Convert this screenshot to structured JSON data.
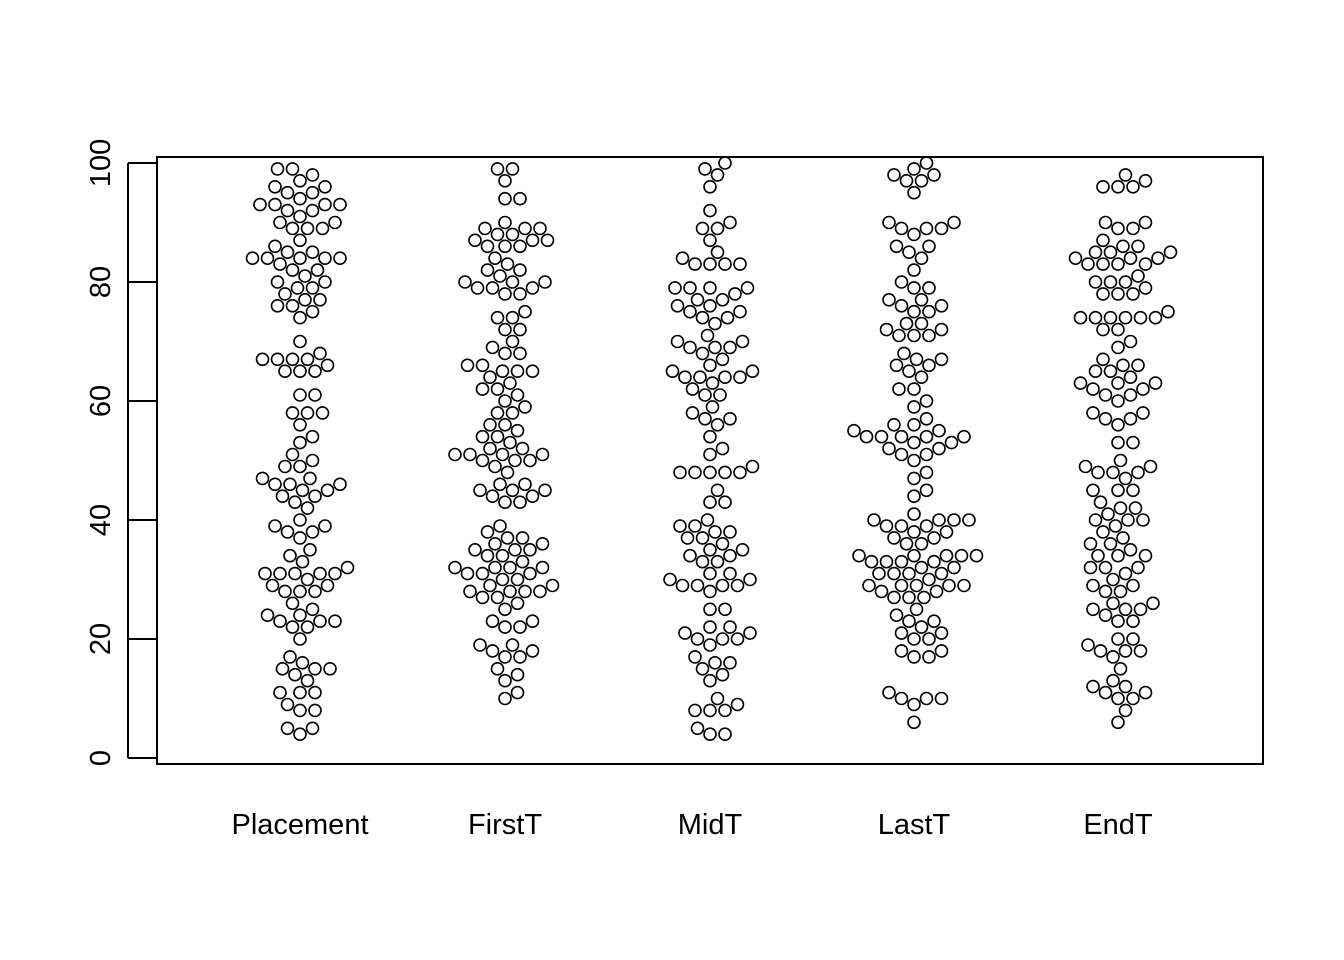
{
  "chart_data": {
    "type": "scatter",
    "subtype": "beeswarm",
    "title": "",
    "xlabel": "",
    "ylabel": "",
    "ylim": [
      -1,
      101
    ],
    "yticks": [
      "0",
      "20",
      "40",
      "60",
      "80",
      "100"
    ],
    "grid": false,
    "legend": "none",
    "marker": "open-circle",
    "colors": {
      "marker_stroke": "#000000",
      "axis": "#000000",
      "background": "#ffffff"
    },
    "categories": [
      "Placement",
      "FirstT",
      "MidT",
      "LastT",
      "EndT"
    ],
    "series": [
      {
        "values": [
          99,
          99,
          98,
          97,
          96,
          96,
          95,
          95,
          94,
          93,
          93,
          93,
          93,
          92,
          92,
          91,
          90,
          90,
          89,
          89,
          89,
          87,
          86,
          85,
          85,
          84,
          84,
          84,
          84,
          84,
          83,
          82,
          82,
          81,
          80,
          80,
          79,
          79,
          78,
          77,
          77,
          76,
          76,
          75,
          74,
          70,
          68,
          67,
          67,
          67,
          67,
          66,
          65,
          65,
          65,
          61,
          61,
          58,
          58,
          58,
          56,
          54,
          53,
          51,
          50,
          49,
          49,
          47,
          47,
          46,
          46,
          46,
          45,
          45,
          44,
          44,
          43,
          42,
          40,
          39,
          39,
          38,
          38,
          37,
          35,
          34,
          33,
          32,
          31,
          31,
          31,
          31,
          31,
          30,
          29,
          29,
          28,
          28,
          28,
          26,
          25,
          24,
          24,
          23,
          23,
          23,
          22,
          22,
          20,
          17,
          16,
          15,
          15,
          15,
          14,
          13,
          11,
          11,
          11,
          9,
          8,
          8,
          5,
          5,
          4
        ]
      },
      {
        "values": [
          99,
          99,
          97,
          94,
          94,
          90,
          89,
          89,
          89,
          88,
          88,
          87,
          87,
          87,
          86,
          86,
          86,
          84,
          83,
          82,
          82,
          81,
          80,
          80,
          80,
          79,
          79,
          79,
          78,
          78,
          75,
          74,
          74,
          72,
          72,
          70,
          69,
          68,
          68,
          66,
          66,
          65,
          65,
          65,
          64,
          63,
          62,
          62,
          61,
          60,
          59,
          58,
          58,
          56,
          56,
          55,
          54,
          54,
          53,
          52,
          52,
          51,
          51,
          51,
          51,
          50,
          50,
          50,
          49,
          48,
          46,
          46,
          45,
          45,
          45,
          44,
          44,
          43,
          43,
          39,
          38,
          37,
          37,
          36,
          36,
          35,
          35,
          35,
          34,
          34,
          33,
          32,
          32,
          32,
          32,
          31,
          31,
          31,
          30,
          30,
          29,
          29,
          28,
          28,
          28,
          28,
          27,
          27,
          26,
          25,
          23,
          23,
          22,
          22,
          19,
          19,
          18,
          18,
          17,
          17,
          15,
          14,
          13,
          11,
          10
        ]
      },
      {
        "values": [
          100,
          99,
          98,
          96,
          92,
          90,
          89,
          89,
          87,
          85,
          84,
          83,
          83,
          83,
          83,
          79,
          79,
          79,
          79,
          78,
          77,
          77,
          76,
          76,
          75,
          75,
          74,
          74,
          73,
          71,
          70,
          70,
          69,
          69,
          69,
          68,
          67,
          66,
          65,
          65,
          64,
          64,
          64,
          64,
          63,
          62,
          61,
          61,
          59,
          58,
          57,
          57,
          56,
          54,
          52,
          51,
          49,
          48,
          48,
          48,
          48,
          48,
          45,
          43,
          43,
          40,
          39,
          39,
          38,
          38,
          37,
          37,
          36,
          35,
          35,
          34,
          34,
          33,
          33,
          31,
          31,
          30,
          30,
          29,
          29,
          29,
          29,
          28,
          25,
          25,
          22,
          22,
          21,
          21,
          20,
          20,
          20,
          19,
          17,
          16,
          16,
          15,
          14,
          13,
          10,
          9,
          8,
          8,
          8,
          5,
          4,
          4
        ]
      },
      {
        "values": [
          100,
          99,
          98,
          98,
          97,
          97,
          95,
          90,
          90,
          89,
          89,
          89,
          88,
          86,
          86,
          85,
          84,
          82,
          80,
          79,
          79,
          77,
          77,
          76,
          76,
          75,
          75,
          73,
          73,
          72,
          72,
          71,
          71,
          71,
          68,
          67,
          67,
          66,
          66,
          65,
          64,
          62,
          62,
          60,
          59,
          57,
          56,
          56,
          55,
          55,
          54,
          54,
          54,
          54,
          54,
          53,
          53,
          52,
          52,
          51,
          51,
          50,
          48,
          47,
          45,
          44,
          41,
          40,
          40,
          40,
          40,
          39,
          39,
          39,
          38,
          38,
          37,
          37,
          36,
          36,
          34,
          34,
          34,
          34,
          34,
          33,
          33,
          33,
          33,
          32,
          32,
          31,
          31,
          31,
          31,
          30,
          29,
          29,
          29,
          29,
          29,
          28,
          28,
          27,
          27,
          27,
          25,
          24,
          23,
          23,
          22,
          21,
          21,
          20,
          20,
          18,
          18,
          17,
          17,
          11,
          10,
          10,
          10,
          9,
          6
        ]
      },
      {
        "values": [
          98,
          97,
          96,
          96,
          96,
          90,
          90,
          89,
          89,
          87,
          86,
          86,
          85,
          85,
          85,
          84,
          84,
          84,
          83,
          83,
          83,
          83,
          81,
          80,
          80,
          80,
          79,
          78,
          78,
          78,
          75,
          74,
          74,
          74,
          74,
          74,
          74,
          72,
          72,
          70,
          69,
          67,
          66,
          66,
          65,
          65,
          64,
          63,
          63,
          63,
          62,
          62,
          61,
          61,
          60,
          58,
          58,
          57,
          57,
          56,
          53,
          53,
          50,
          49,
          49,
          48,
          48,
          48,
          47,
          45,
          45,
          45,
          43,
          42,
          42,
          41,
          40,
          40,
          40,
          39,
          38,
          37,
          36,
          36,
          35,
          34,
          34,
          34,
          32,
          32,
          32,
          31,
          30,
          29,
          29,
          28,
          28,
          26,
          26,
          25,
          25,
          25,
          24,
          23,
          23,
          20,
          20,
          19,
          18,
          18,
          18,
          17,
          15,
          13,
          12,
          12,
          11,
          11,
          10,
          10,
          8,
          6
        ]
      }
    ]
  }
}
